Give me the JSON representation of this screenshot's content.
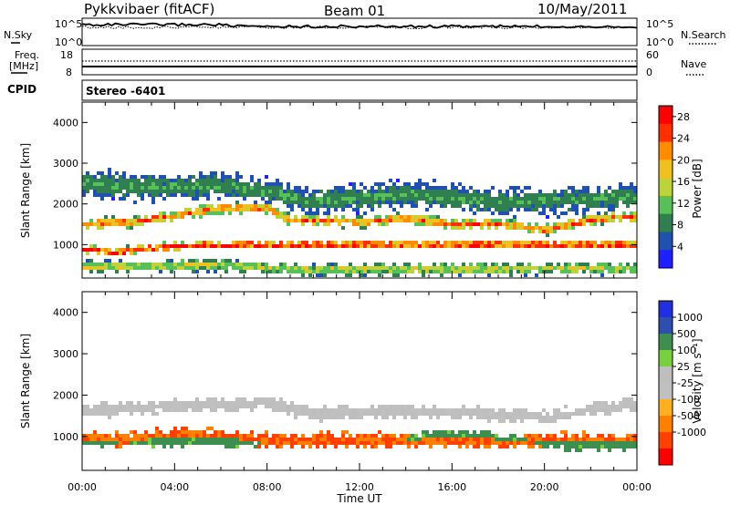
{
  "header": {
    "radar": "Pykkvibaer (fitACF)",
    "beam": "Beam 01",
    "date": "10/May/2011"
  },
  "strip_sky": {
    "left_label": "N.Sky",
    "right_label": "N.Search",
    "left_ticks": [
      "10^5",
      "10^0"
    ],
    "right_ticks": [
      "10^5",
      "10^0"
    ]
  },
  "strip_freq": {
    "left_label_1": "Freq.",
    "left_label_2": "[MHz]",
    "right_label": "Nave",
    "left_ticks": [
      "18",
      "8"
    ],
    "right_ticks": [
      "60",
      "0"
    ],
    "cpid_label": "CPID",
    "cpid_value": "Stereo -6401"
  },
  "colors": {
    "power": [
      "#1f1fff",
      "#2050b0",
      "#2f7f50",
      "#58c058",
      "#bcd43a",
      "#f0c020",
      "#ff8c00",
      "#ff3000",
      "#ff0000"
    ],
    "velocity": [
      "#ff0000",
      "#ff4000",
      "#ff8000",
      "#ffb020",
      "#c0c0c0",
      "#bebebe",
      "#78d040",
      "#3d8f4f",
      "#2f4fb0",
      "#2030e0"
    ]
  },
  "chart_data": [
    {
      "type": "heatmap",
      "quantity": "Power",
      "ylabel": "Slant Range [km]",
      "xlabel": "Time UT",
      "ylim": [
        180,
        4500
      ],
      "y_ticks": [
        1000,
        2000,
        3000,
        4000
      ],
      "x_ticks": [
        "00:00",
        "04:00",
        "08:00",
        "12:00",
        "16:00",
        "20:00",
        "00:00"
      ],
      "xlim_hours": [
        0,
        24
      ],
      "colorbar": {
        "label": "Power [dB]",
        "ticks": [
          "4",
          "8",
          "12",
          "16",
          "20",
          "24",
          "28"
        ],
        "range": [
          0,
          30
        ]
      },
      "bands": [
        {
          "name": "main-echo-band",
          "center": [
            [
              0,
              1500
            ],
            [
              2,
              1550
            ],
            [
              4,
              1700
            ],
            [
              6,
              1900
            ],
            [
              8,
              1900
            ],
            [
              9,
              1600
            ],
            [
              12,
              1550
            ],
            [
              14,
              1650
            ],
            [
              16,
              1500
            ],
            [
              18,
              1500
            ],
            [
              20,
              1350
            ],
            [
              22,
              1600
            ],
            [
              24,
              1700
            ]
          ],
          "width": 260,
          "value_peak": 24
        },
        {
          "name": "near-range-band",
          "center": [
            [
              0,
              900
            ],
            [
              1.5,
              800
            ],
            [
              2.5,
              900
            ],
            [
              4,
              950
            ],
            [
              5.5,
              1000
            ]
          ],
          "width": 200,
          "value_peak": 30
        },
        {
          "name": "upper-diffuse-band",
          "center": [
            [
              0,
              2500
            ],
            [
              3,
              2400
            ],
            [
              6,
              2450
            ],
            [
              8,
              2300
            ],
            [
              10,
              2050
            ],
            [
              14,
              2250
            ],
            [
              18,
              2050
            ],
            [
              22,
              2100
            ],
            [
              24,
              2200
            ]
          ],
          "width": 650,
          "value_peak": 10
        },
        {
          "name": "low-range-band",
          "center": [
            [
              0,
              450
            ],
            [
              6,
              500
            ],
            [
              10,
              380
            ],
            [
              14,
              400
            ],
            [
              18,
              400
            ],
            [
              22,
              420
            ],
            [
              24,
              400
            ]
          ],
          "width": 300,
          "value_peak": 16
        }
      ]
    },
    {
      "type": "heatmap",
      "quantity": "Velocity",
      "ylabel": "Slant Range [km]",
      "xlabel": "Time UT",
      "ylim": [
        180,
        4500
      ],
      "y_ticks": [
        1000,
        2000,
        3000,
        4000
      ],
      "x_ticks": [
        "00:00",
        "04:00",
        "08:00",
        "12:00",
        "16:00",
        "20:00",
        "00:00"
      ],
      "xlim_hours": [
        0,
        24
      ],
      "colorbar": {
        "label": "Velocity [m s⁻¹]",
        "ticks": [
          "1000",
          "500",
          "100",
          "25",
          "-25",
          "-100",
          "-500",
          "-1000"
        ],
        "range": [
          -1000,
          1000
        ]
      },
      "bands": [
        {
          "name": "ground-scatter-band",
          "center": [
            [
              0,
              1600
            ],
            [
              4,
              1750
            ],
            [
              8,
              1800
            ],
            [
              10,
              1550
            ],
            [
              14,
              1600
            ],
            [
              18,
              1550
            ],
            [
              20,
              1450
            ],
            [
              24,
              1800
            ]
          ],
          "width": 320,
          "value_peak": 0
        },
        {
          "name": "negative-velocity-band",
          "center": [
            [
              0,
              950
            ],
            [
              2,
              900
            ],
            [
              4,
              1050
            ],
            [
              6,
              1000
            ],
            [
              8,
              900
            ]
          ],
          "width": 350,
          "value_peak": -500
        },
        {
          "name": "positive-velocity-band",
          "center": [
            [
              14,
              900
            ],
            [
              16,
              1050
            ],
            [
              18,
              950
            ],
            [
              22,
              800
            ]
          ],
          "width": 300,
          "value_peak": 150
        }
      ]
    }
  ]
}
